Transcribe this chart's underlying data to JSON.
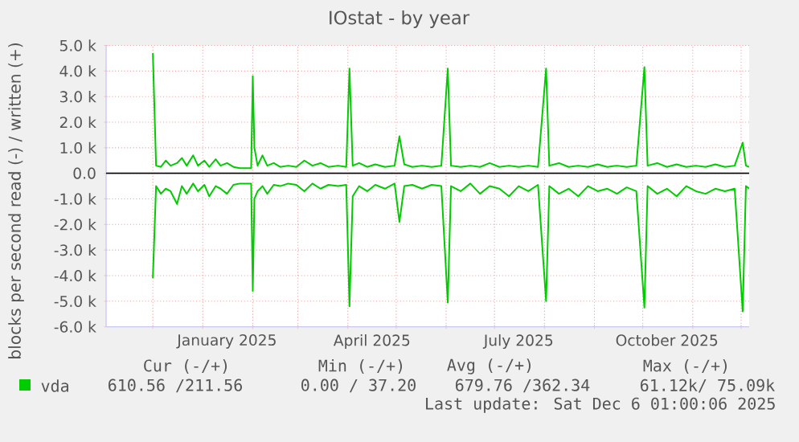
{
  "chart_data": {
    "type": "line",
    "title": "IOstat - by year",
    "ylabel": "blocks per second read (-) / written (+)",
    "x": [
      "2024-12-01",
      "2024-12-03",
      "2024-12-06",
      "2024-12-09",
      "2024-12-12",
      "2024-12-16",
      "2024-12-19",
      "2024-12-22",
      "2024-12-26",
      "2024-12-29",
      "2025-01-02",
      "2025-01-05",
      "2025-01-09",
      "2025-01-12",
      "2025-01-16",
      "2025-01-20",
      "2025-01-24",
      "2025-01-28",
      "2025-01-31",
      "2025-02-01",
      "2025-02-02",
      "2025-02-04",
      "2025-02-07",
      "2025-02-10",
      "2025-02-14",
      "2025-02-18",
      "2025-02-23",
      "2025-02-28",
      "2025-03-05",
      "2025-03-10",
      "2025-03-15",
      "2025-03-20",
      "2025-03-26",
      "2025-03-31",
      "2025-04-02",
      "2025-04-04",
      "2025-04-08",
      "2025-04-13",
      "2025-04-18",
      "2025-04-24",
      "2025-04-30",
      "2025-05-03",
      "2025-05-06",
      "2025-05-11",
      "2025-05-17",
      "2025-05-23",
      "2025-05-29",
      "2025-06-02",
      "2025-06-04",
      "2025-06-10",
      "2025-06-16",
      "2025-06-22",
      "2025-06-28",
      "2025-07-04",
      "2025-07-10",
      "2025-07-16",
      "2025-07-22",
      "2025-07-28",
      "2025-08-02",
      "2025-08-04",
      "2025-08-10",
      "2025-08-16",
      "2025-08-22",
      "2025-08-28",
      "2025-09-03",
      "2025-09-09",
      "2025-09-15",
      "2025-09-21",
      "2025-09-27",
      "2025-10-02",
      "2025-10-04",
      "2025-10-10",
      "2025-10-16",
      "2025-10-22",
      "2025-10-28",
      "2025-11-03",
      "2025-11-09",
      "2025-11-15",
      "2025-11-21",
      "2025-11-27",
      "2025-12-02",
      "2025-12-04",
      "2025-12-06"
    ],
    "series": [
      {
        "name": "vda",
        "color": "#00cc00",
        "values": [
          4700,
          300,
          250,
          500,
          300,
          400,
          600,
          300,
          700,
          300,
          500,
          250,
          550,
          300,
          400,
          250,
          200,
          200,
          200,
          3800,
          1000,
          300,
          700,
          300,
          400,
          250,
          300,
          250,
          500,
          300,
          400,
          250,
          300,
          250,
          4100,
          300,
          400,
          250,
          350,
          250,
          300,
          1450,
          350,
          250,
          300,
          250,
          300,
          4100,
          300,
          250,
          300,
          250,
          400,
          250,
          300,
          250,
          300,
          250,
          4100,
          300,
          400,
          250,
          300,
          250,
          350,
          250,
          300,
          250,
          300,
          4150,
          300,
          400,
          250,
          350,
          250,
          300,
          250,
          350,
          250,
          300,
          1200,
          300,
          250
        ]
      },
      {
        "color": "#00cc00",
        "values": [
          -4100,
          -500,
          -800,
          -600,
          -700,
          -1200,
          -500,
          -800,
          -400,
          -700,
          -450,
          -900,
          -500,
          -600,
          -800,
          -450,
          -400,
          -400,
          -400,
          -4600,
          -1000,
          -700,
          -500,
          -800,
          -450,
          -500,
          -400,
          -450,
          -700,
          -400,
          -600,
          -450,
          -500,
          -450,
          -5200,
          -900,
          -500,
          -700,
          -450,
          -600,
          -400,
          -1900,
          -500,
          -450,
          -600,
          -450,
          -500,
          -5050,
          -500,
          -700,
          -400,
          -800,
          -500,
          -600,
          -900,
          -500,
          -700,
          -450,
          -5000,
          -500,
          -800,
          -600,
          -900,
          -500,
          -700,
          -600,
          -800,
          -550,
          -700,
          -5250,
          -500,
          -800,
          -600,
          -900,
          -500,
          -700,
          -800,
          -600,
          -700,
          -600,
          -5400,
          -500,
          -600
        ]
      }
    ],
    "xlim": [
      "2024-11-02",
      "2025-12-06"
    ],
    "xticks": [
      {
        "value": "2024-12-01",
        "label": null
      },
      {
        "value": "2025-01-01",
        "label": null
      },
      {
        "value": "2025-01-16",
        "label": "January 2025"
      },
      {
        "value": "2025-02-01",
        "label": null
      },
      {
        "value": "2025-03-01",
        "label": null
      },
      {
        "value": "2025-04-01",
        "label": null
      },
      {
        "value": "2025-04-16",
        "label": "April 2025"
      },
      {
        "value": "2025-05-01",
        "label": null
      },
      {
        "value": "2025-06-01",
        "label": null
      },
      {
        "value": "2025-07-01",
        "label": null
      },
      {
        "value": "2025-07-16",
        "label": "July 2025"
      },
      {
        "value": "2025-08-01",
        "label": null
      },
      {
        "value": "2025-09-01",
        "label": null
      },
      {
        "value": "2025-10-01",
        "label": null
      },
      {
        "value": "2025-10-16",
        "label": "October 2025"
      },
      {
        "value": "2025-11-01",
        "label": null
      },
      {
        "value": "2025-12-01",
        "label": null
      }
    ],
    "ylim": [
      -6000,
      5000
    ],
    "yticks": [
      {
        "value": -6000,
        "label": "-6.0 k"
      },
      {
        "value": -5000,
        "label": "-5.0 k"
      },
      {
        "value": -4000,
        "label": "-4.0 k"
      },
      {
        "value": -3000,
        "label": "-3.0 k"
      },
      {
        "value": -2000,
        "label": "-2.0 k"
      },
      {
        "value": -1000,
        "label": "-1.0 k"
      },
      {
        "value": 0,
        "label": "0.0"
      },
      {
        "value": 1000,
        "label": "1.0 k"
      },
      {
        "value": 2000,
        "label": "2.0 k"
      },
      {
        "value": 3000,
        "label": "3.0 k"
      },
      {
        "value": 4000,
        "label": "4.0 k"
      },
      {
        "value": 5000,
        "label": "5.0 k"
      }
    ],
    "ref_lines": [
      {
        "axis": "y",
        "value": 0,
        "color": "#000000"
      }
    ],
    "grid": true,
    "legend": "bottom",
    "marker": "none",
    "line_style": "solid",
    "annotations": [
      "Cur (-/+)",
      "610.56 /211.56",
      "Min (-/+)",
      "0.00 / 37.20",
      "Avg (-/+)",
      "679.76 /362.34",
      "Max (-/+)",
      "61.12k/ 75.09k",
      "Last update: Sat Dec 6 01:00:06 2025"
    ]
  }
}
